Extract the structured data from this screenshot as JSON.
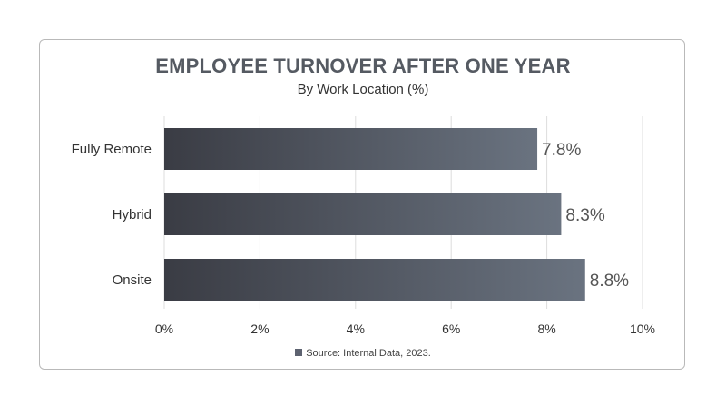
{
  "chart_data": {
    "type": "bar",
    "orientation": "horizontal",
    "title": "EMPLOYEE TURNOVER AFTER ONE YEAR",
    "subtitle": "By Work Location (%)",
    "categories": [
      "Fully Remote",
      "Hybrid",
      "Onsite"
    ],
    "values": [
      7.8,
      8.3,
      8.8
    ],
    "data_labels": [
      "7.8%",
      "8.3%",
      "8.8%"
    ],
    "xlim": [
      0,
      10
    ],
    "x_ticks": [
      0,
      2,
      4,
      6,
      8,
      10
    ],
    "x_tick_labels": [
      "0%",
      "2%",
      "4%",
      "6%",
      "8%",
      "10%"
    ],
    "xlabel": "",
    "ylabel": "",
    "grid": "vertical",
    "legend": "none",
    "colors": {
      "bar_start": "#3a3c44",
      "bar_end": "#6a7380",
      "gridline": "#dddddd",
      "text": "#333333",
      "data_label": "#555555"
    }
  },
  "source": {
    "text": "Source: Internal Data, 2023.",
    "swatch_color": "#5d6270"
  }
}
